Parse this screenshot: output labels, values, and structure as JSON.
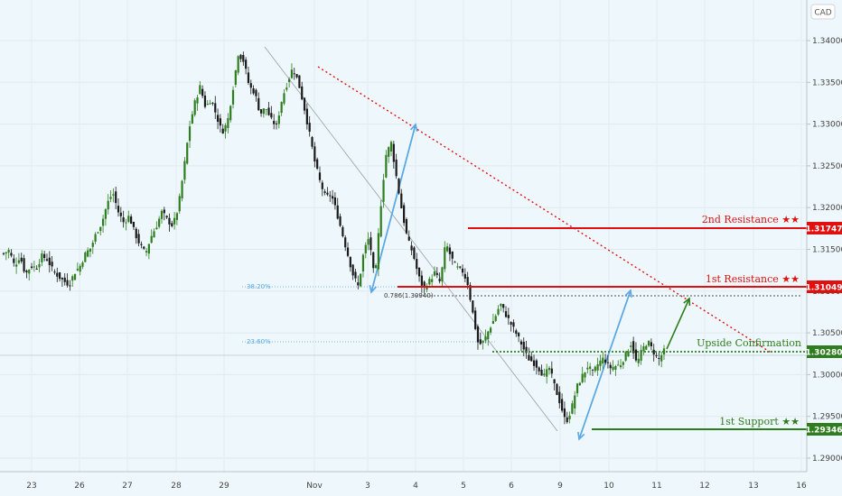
{
  "chart_data": {
    "type": "candlestick",
    "currency": "CAD",
    "y_ticks": [
      "1.34000",
      "1.33500",
      "1.33000",
      "1.32500",
      "1.32000",
      "1.31500",
      "1.31000",
      "1.30500",
      "1.30000",
      "1.29500",
      "1.29000"
    ],
    "ylim": [
      1.2875,
      1.3435
    ],
    "x_ticks": [
      "23",
      "26",
      "27",
      "28",
      "29",
      "Nov",
      "3",
      "4",
      "5",
      "6",
      "9",
      "10",
      "11",
      "12",
      "13",
      "16"
    ],
    "levels": [
      {
        "name": "2nd Resistance ★★",
        "value": "1.31747",
        "color": "#e01010"
      },
      {
        "name": "1st Resistance ★★",
        "value": "1.31049",
        "color": "#e01010"
      },
      {
        "name": "Upside Confirmation",
        "value": "1.30280",
        "color": "#2e7d1e"
      },
      {
        "name": "1st Support ★★",
        "value": "1.29346",
        "color": "#2e7d1e"
      }
    ],
    "fib_labels": {
      "f382": "38.20%",
      "f236": "23.60%",
      "f786": "0.786(1.30940)"
    },
    "colors": {
      "up": "#2e7d1e",
      "down": "#1a1a1a",
      "resistance": "#e01010",
      "support": "#2e7d1e",
      "projection": "#5aa9e6",
      "trend": "#9aa0a6"
    },
    "close_path": [
      [
        1.3145,
        1.3149
      ],
      [
        1.313,
        1.3142
      ],
      [
        1.312,
        1.313
      ],
      [
        1.3128,
        1.3142
      ],
      [
        1.3138,
        1.3125
      ],
      [
        1.3118,
        1.3112
      ],
      [
        1.3108,
        1.3122
      ],
      [
        1.313,
        1.3145
      ],
      [
        1.3152,
        1.317
      ],
      [
        1.3182,
        1.3205
      ],
      [
        1.3218,
        1.3195
      ],
      [
        1.3182,
        1.319
      ],
      [
        1.317,
        1.3155
      ],
      [
        1.3145,
        1.3165
      ],
      [
        1.3178,
        1.3195
      ],
      [
        1.3185,
        1.3178
      ],
      [
        1.32,
        1.3245
      ],
      [
        1.3295,
        1.3325
      ],
      [
        1.3345,
        1.332
      ],
      [
        1.333,
        1.331
      ],
      [
        1.329,
        1.3302
      ],
      [
        1.3342,
        1.3385
      ],
      [
        1.3375,
        1.3345
      ],
      [
        1.3338,
        1.3312
      ],
      [
        1.332,
        1.3305
      ],
      [
        1.3298,
        1.333
      ],
      [
        1.335,
        1.3368
      ],
      [
        1.335,
        1.3322
      ],
      [
        1.329,
        1.3255
      ],
      [
        1.323,
        1.3212
      ],
      [
        1.3216,
        1.3195
      ],
      [
        1.317,
        1.3145
      ],
      [
        1.312,
        1.3105
      ],
      [
        1.3148,
        1.3165
      ],
      [
        1.311,
        1.3195
      ],
      [
        1.3262,
        1.3278
      ],
      [
        1.3235,
        1.3195
      ],
      [
        1.3162,
        1.3145
      ],
      [
        1.3118,
        1.3102
      ],
      [
        1.3112,
        1.3122
      ],
      [
        1.311,
        1.3158
      ],
      [
        1.314,
        1.3128
      ],
      [
        1.3125,
        1.311
      ],
      [
        1.3072,
        1.3035
      ],
      [
        1.304,
        1.3055
      ],
      [
        1.3068,
        1.3085
      ],
      [
        1.3072,
        1.306
      ],
      [
        1.3048,
        1.3035
      ],
      [
        1.302,
        1.3015
      ],
      [
        1.3008,
        1.2998
      ],
      [
        1.3008,
        1.2985
      ],
      [
        1.2965,
        1.2942
      ],
      [
        1.2958,
        1.2985
      ],
      [
        1.2998,
        1.301
      ],
      [
        1.3002,
        1.3014
      ],
      [
        1.302,
        1.3008
      ],
      [
        1.301,
        1.3012
      ],
      [
        1.3024,
        1.3038
      ],
      [
        1.3012,
        1.303
      ],
      [
        1.304,
        1.3028
      ],
      [
        1.3018,
        1.3028
      ]
    ],
    "series": []
  }
}
